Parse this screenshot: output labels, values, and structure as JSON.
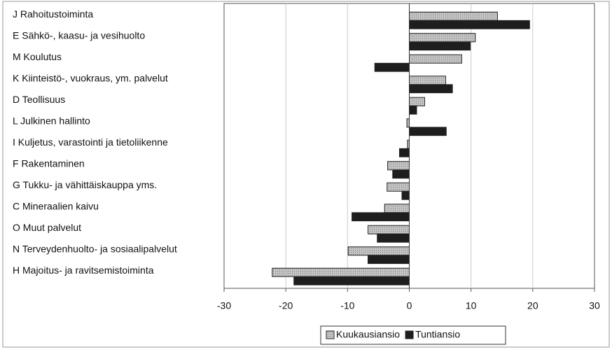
{
  "chart_data": {
    "type": "bar",
    "orientation": "horizontal",
    "categories": [
      "J Rahoitustoiminta",
      "E Sähkö-, kaasu- ja vesihuolto",
      "M Koulutus",
      "K Kiinteistö-, vuokraus, ym. palvelut",
      "D Teollisuus",
      "L Julkinen hallinto",
      "I Kuljetus, varastointi ja tietoliikenne",
      "F Rakentaminen",
      "G Tukku- ja vähittäiskauppa yms.",
      "C Mineraalien kaivu",
      "O Muut palvelut",
      "N Terveydenhuolto- ja sosiaalipalvelut",
      "H Majoitus- ja ravitsemistoiminta"
    ],
    "series": [
      {
        "name": "Kuukausiansio",
        "color": "#c4c4c4",
        "values": [
          14.3,
          10.7,
          8.5,
          5.9,
          2.5,
          -0.4,
          -0.3,
          -3.5,
          -3.6,
          -4.0,
          -6.7,
          -9.9,
          -22.2
        ]
      },
      {
        "name": "Tuntiansio",
        "color": "#1e1e1e",
        "values": [
          19.5,
          9.9,
          -5.6,
          7.0,
          1.2,
          6.0,
          -1.6,
          -2.7,
          -1.2,
          -9.3,
          -5.2,
          -6.7,
          -18.7
        ]
      }
    ],
    "xlim": [
      -30,
      30
    ],
    "xticks": [
      -30,
      -20,
      -10,
      0,
      10,
      20,
      30
    ],
    "grid": true,
    "legend": "bottom"
  }
}
